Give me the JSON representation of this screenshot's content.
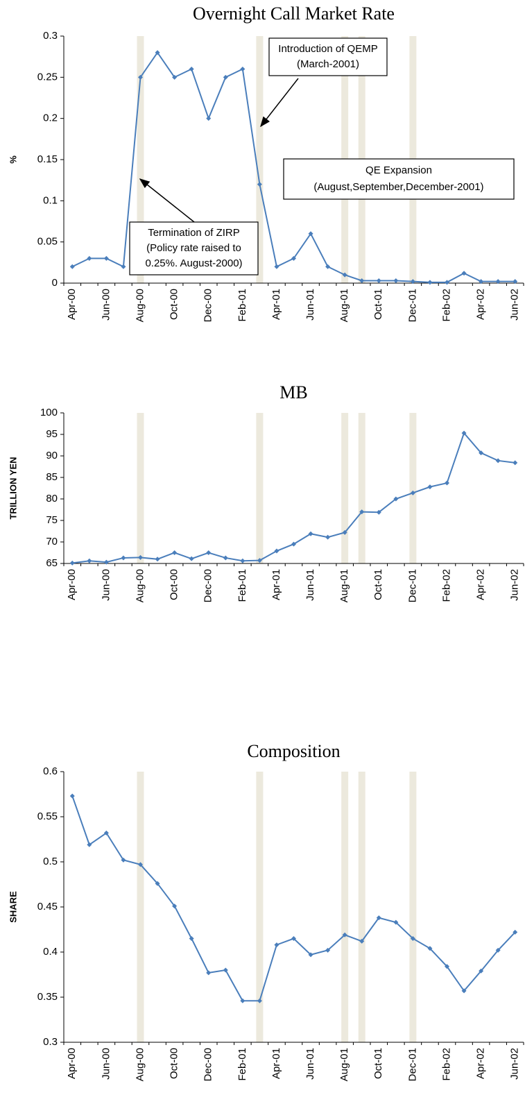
{
  "chart_data": [
    {
      "type": "line",
      "title": "Overnight Call Market Rate",
      "y_label": "%",
      "categories": [
        "Apr-00",
        null,
        "Jun-00",
        null,
        "Aug-00",
        null,
        "Oct-00",
        null,
        "Dec-00",
        null,
        "Feb-01",
        null,
        "Apr-01",
        null,
        "Jun-01",
        null,
        "Aug-01",
        null,
        "Oct-01",
        null,
        "Dec-01",
        null,
        "Feb-02",
        null,
        "Apr-02",
        null,
        "Jun-02"
      ],
      "values": [
        0.02,
        0.03,
        0.03,
        0.02,
        0.25,
        0.28,
        0.25,
        0.26,
        0.2,
        0.25,
        0.26,
        0.12,
        0.02,
        0.03,
        0.06,
        0.02,
        0.01,
        0.003,
        0.003,
        0.003,
        0.002,
        0.001,
        0.001,
        0.012,
        0.002,
        0.002,
        0.002
      ],
      "color": "#4a7ebb",
      "ylim": [
        0,
        0.3
      ],
      "yticks": [
        0,
        0.05,
        0.1,
        0.15,
        0.2,
        0.25,
        0.3
      ],
      "shaded_periods": [
        4,
        11,
        16,
        17,
        20
      ],
      "shade_color": "#ece9dd",
      "annotations": [
        {
          "lines": [
            "Introduction of QEMP",
            "(March-2001)"
          ]
        },
        {
          "lines": [
            "QE Expansion",
            "(August,September,December-2001)"
          ]
        },
        {
          "lines": [
            "Termination of ZIRP",
            "(Policy rate raised to",
            "0.25%. August-2000)"
          ]
        }
      ]
    },
    {
      "type": "line",
      "title": "MB",
      "y_label": "TRILLION YEN",
      "categories": [
        "Apr-00",
        null,
        "Jun-00",
        null,
        "Aug-00",
        null,
        "Oct-00",
        null,
        "Dec-00",
        null,
        "Feb-01",
        null,
        "Apr-01",
        null,
        "Jun-01",
        null,
        "Aug-01",
        null,
        "Oct-01",
        null,
        "Dec-01",
        null,
        "Feb-02",
        null,
        "Apr-02",
        null,
        "Jun-02"
      ],
      "values": [
        65.1,
        65.6,
        65.3,
        66.3,
        66.4,
        66.0,
        67.5,
        66.1,
        67.5,
        66.3,
        65.6,
        65.7,
        67.9,
        69.5,
        71.9,
        71.1,
        72.2,
        77.0,
        76.9,
        80.0,
        81.4,
        82.8,
        83.7,
        95.3,
        90.7,
        88.9,
        88.4
      ],
      "color": "#4a7ebb",
      "ylim": [
        65,
        100
      ],
      "yticks": [
        65,
        70,
        75,
        80,
        85,
        90,
        95,
        100
      ],
      "shaded_periods": [
        4,
        11,
        16,
        17,
        20
      ],
      "shade_color": "#ece9dd"
    },
    {
      "type": "line",
      "title": "Composition",
      "y_label": "SHARE",
      "categories": [
        "Apr-00",
        null,
        "Jun-00",
        null,
        "Aug-00",
        null,
        "Oct-00",
        null,
        "Dec-00",
        null,
        "Feb-01",
        null,
        "Apr-01",
        null,
        "Jun-01",
        null,
        "Aug-01",
        null,
        "Oct-01",
        null,
        "Dec-01",
        null,
        "Feb-02",
        null,
        "Apr-02",
        null,
        "Jun-02"
      ],
      "values": [
        0.573,
        0.519,
        0.532,
        0.502,
        0.497,
        0.476,
        0.451,
        0.415,
        0.377,
        0.38,
        0.346,
        0.346,
        0.408,
        0.415,
        0.397,
        0.402,
        0.419,
        0.412,
        0.438,
        0.433,
        0.415,
        0.404,
        0.384,
        0.357,
        0.379,
        0.402,
        0.422
      ],
      "color": "#4a7ebb",
      "ylim": [
        0.3,
        0.6
      ],
      "yticks": [
        0.3,
        0.35,
        0.4,
        0.45,
        0.5,
        0.55,
        0.6
      ],
      "shaded_periods": [
        4,
        11,
        16,
        17,
        20
      ],
      "shade_color": "#ece9dd"
    }
  ]
}
